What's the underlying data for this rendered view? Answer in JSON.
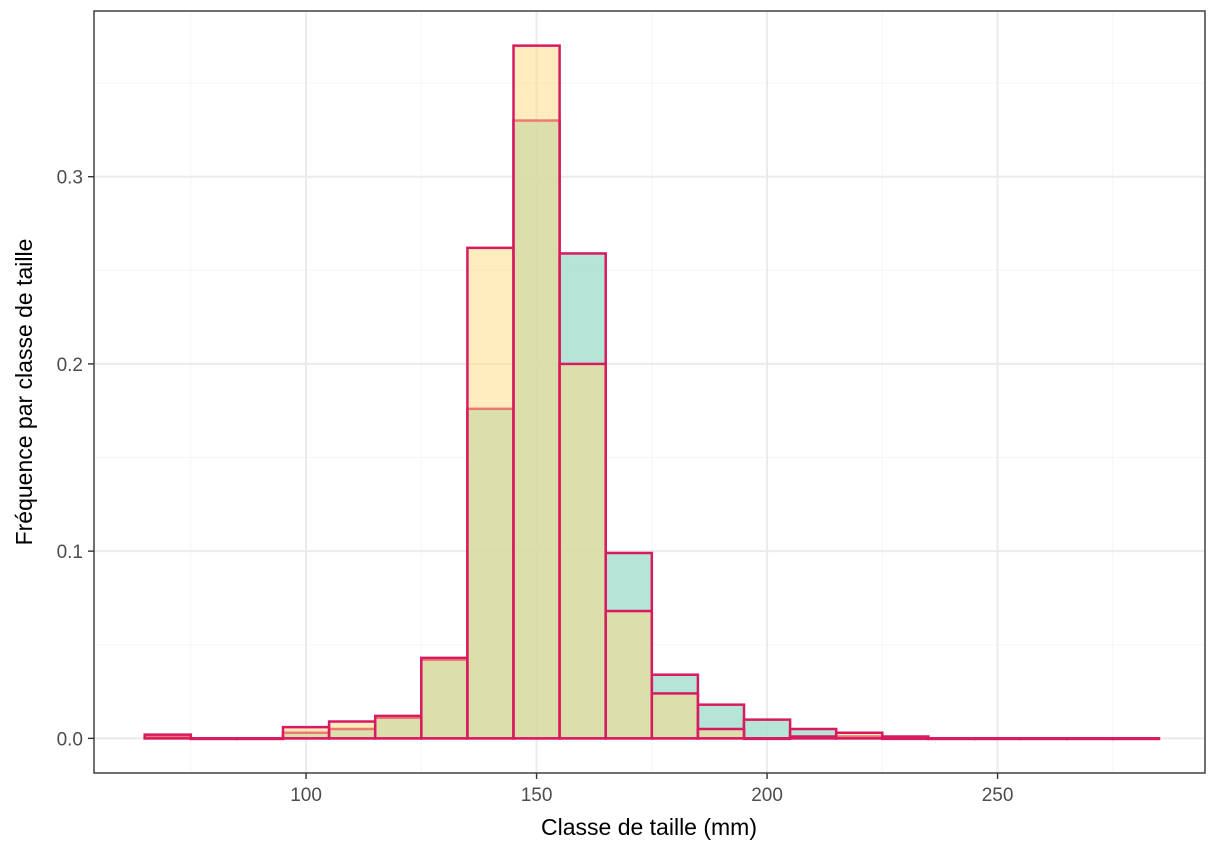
{
  "chart_data": {
    "type": "histogram",
    "title": "",
    "xlabel": "Classe de taille (mm)",
    "ylabel": "Fréquence par classe de taille",
    "xlim": [
      54,
      295
    ],
    "ylim": [
      -0.0185,
      0.3885
    ],
    "x_ticks": [
      100,
      150,
      200,
      250
    ],
    "x_tick_labels": [
      "100",
      "150",
      "200",
      "250"
    ],
    "y_ticks": [
      0.0,
      0.1,
      0.2,
      0.3
    ],
    "y_tick_labels": [
      "0.0",
      "0.1",
      "0.2",
      "0.3"
    ],
    "grid": true,
    "bin_edges": [
      65,
      75,
      85,
      95,
      105,
      115,
      125,
      135,
      145,
      155,
      165,
      175,
      185,
      195,
      205,
      215,
      225,
      235,
      245,
      255,
      265,
      275,
      285
    ],
    "series": [
      {
        "fill": "#a8e0cf",
        "outline": "#d81b60",
        "values": [
          0.001,
          0.0,
          0.0,
          0.003,
          0.005,
          0.011,
          0.042,
          0.176,
          0.33,
          0.259,
          0.099,
          0.034,
          0.018,
          0.01,
          0.005,
          0.001,
          0.0,
          0.0,
          0.0,
          0.0,
          0.0,
          0.0
        ]
      },
      {
        "fill": "#ffd97f",
        "outline": "#d81b60",
        "values": [
          0.002,
          0.0,
          0.0,
          0.006,
          0.009,
          0.012,
          0.043,
          0.262,
          0.37,
          0.2,
          0.068,
          0.024,
          0.005,
          0.0,
          0.001,
          0.003,
          0.001,
          0.0,
          0.0,
          0.0,
          0.0,
          0.0
        ]
      }
    ],
    "overlap_color": "#d8d27c",
    "panel_border": "#333333",
    "grid_major": "#ebebeb",
    "grid_minor": "#f5f5f5"
  }
}
